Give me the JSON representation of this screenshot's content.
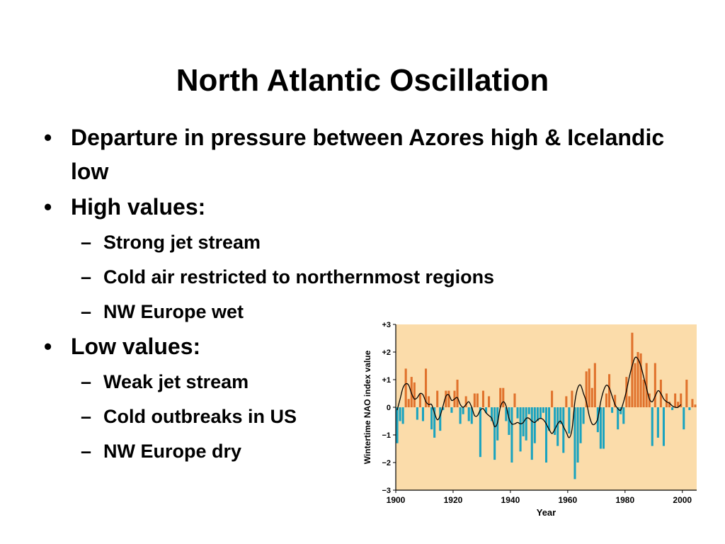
{
  "slide": {
    "title": "North Atlantic Oscillation",
    "bullets": [
      {
        "text": "Departure in pressure between Azores high & Icelandic low",
        "sub": []
      },
      {
        "text": "High values:",
        "sub": [
          "Strong jet stream",
          "Cold air restricted to northernmost regions",
          "NW Europe wet"
        ]
      },
      {
        "text": "Low values:",
        "sub": [
          "Weak jet stream",
          "Cold outbreaks in US",
          "NW Europe dry"
        ]
      }
    ]
  },
  "chart_data": {
    "type": "bar",
    "xlabel": "Year",
    "ylabel": "Wintertime NAO index value",
    "xlim": [
      1900,
      2005
    ],
    "ylim": [
      -3,
      3
    ],
    "x_ticks": [
      1900,
      1920,
      1940,
      1960,
      1980,
      2000
    ],
    "x_tick_labels": [
      "1900",
      "1920",
      "1940",
      "1960",
      "1980",
      "2000"
    ],
    "y_ticks": [
      3,
      2,
      1,
      0,
      -1,
      -2,
      -3
    ],
    "y_tick_labels": [
      "+3",
      "+2",
      "+1",
      "0",
      "−1",
      "−2",
      "−3"
    ],
    "grid": false,
    "colors": {
      "background": "#fbdcaa",
      "positive": "#e0722c",
      "negative": "#1aa3bf",
      "smooth_line": "#000000"
    },
    "years": [
      1900,
      1901,
      1902,
      1903,
      1904,
      1905,
      1906,
      1907,
      1908,
      1909,
      1910,
      1911,
      1912,
      1913,
      1914,
      1915,
      1916,
      1917,
      1918,
      1919,
      1920,
      1921,
      1922,
      1923,
      1924,
      1925,
      1926,
      1927,
      1928,
      1929,
      1930,
      1931,
      1932,
      1933,
      1934,
      1935,
      1936,
      1937,
      1938,
      1939,
      1940,
      1941,
      1942,
      1943,
      1944,
      1945,
      1946,
      1947,
      1948,
      1949,
      1950,
      1951,
      1952,
      1953,
      1954,
      1955,
      1956,
      1957,
      1958,
      1959,
      1960,
      1961,
      1962,
      1963,
      1964,
      1965,
      1966,
      1967,
      1968,
      1969,
      1970,
      1971,
      1972,
      1973,
      1974,
      1975,
      1976,
      1977,
      1978,
      1979,
      1980,
      1981,
      1982,
      1983,
      1984,
      1985,
      1986,
      1987,
      1988,
      1989,
      1990,
      1991,
      1992,
      1993,
      1994,
      1995,
      1996,
      1997,
      1998,
      1999,
      2000,
      2001,
      2002,
      2003,
      2004
    ],
    "values": [
      -1.3,
      -0.5,
      -0.6,
      1.4,
      0.3,
      1.1,
      0.9,
      -0.45,
      0.5,
      -0.5,
      1.4,
      0.4,
      -0.8,
      -1.1,
      0.6,
      -0.85,
      -0.1,
      0.6,
      0.6,
      -0.2,
      0.6,
      1.0,
      -0.6,
      -0.25,
      0.4,
      -0.5,
      -0.6,
      0.5,
      0.5,
      -1.8,
      0.6,
      -0.2,
      0.4,
      -0.5,
      -1.9,
      -1.2,
      0.7,
      0.7,
      -0.5,
      -1.0,
      -2.0,
      0.5,
      -0.4,
      -1.6,
      -1.05,
      -1.2,
      -0.25,
      -1.9,
      -1.3,
      -0.5,
      -0.4,
      -0.2,
      -2.0,
      -0.85,
      0.6,
      -1.0,
      -1.4,
      -0.6,
      -1.65,
      0.4,
      -0.95,
      0.6,
      -2.6,
      -2.0,
      -1.3,
      -0.6,
      1.3,
      1.4,
      0.7,
      1.6,
      -0.9,
      -1.5,
      -1.5,
      0.5,
      1.2,
      -0.2,
      0.45,
      -0.8,
      -0.25,
      -0.6,
      1.1,
      0.4,
      2.7,
      1.6,
      2.0,
      1.95,
      1.0,
      1.6,
      0.5,
      -1.4,
      1.6,
      -1.1,
      1.0,
      -1.4,
      0.5,
      0.2,
      -0.1,
      0.5,
      0.2,
      0.5,
      -0.8,
      1.0,
      -0.1,
      0.3,
      0.1
    ],
    "smoothed": [
      -0.1,
      0.3,
      0.7,
      0.85,
      0.8,
      0.5,
      0.3,
      0.35,
      0.5,
      0.45,
      0.2,
      0.1,
      0.1,
      -0.2,
      -0.45,
      -0.3,
      0.05,
      0.4,
      0.45,
      0.25,
      0.3,
      0.35,
      0.1,
      0.0,
      0.1,
      0.2,
      0.0,
      -0.3,
      -0.3,
      -0.1,
      -0.05,
      -0.2,
      -0.3,
      -0.4,
      -0.7,
      -0.55,
      0.0,
      0.2,
      0.05,
      -0.4,
      -0.6,
      -0.6,
      -0.55,
      -0.6,
      -0.55,
      -0.4,
      -0.4,
      -0.5,
      -0.55,
      -0.45,
      -0.4,
      -0.45,
      -0.6,
      -0.8,
      -0.95,
      -0.8,
      -0.6,
      -0.5,
      -0.7,
      -0.9,
      -1.1,
      -0.8,
      0.2,
      0.7,
      0.8,
      0.5,
      0.2,
      -0.3,
      -0.6,
      -0.6,
      -0.4,
      0.2,
      0.6,
      0.8,
      0.7,
      0.4,
      0.1,
      -0.05,
      -0.1,
      0.2,
      0.6,
      1.1,
      1.5,
      1.8,
      1.75,
      1.5,
      1.1,
      0.7,
      0.3,
      0.2,
      0.4,
      0.6,
      0.5,
      0.3,
      0.2,
      0.15,
      0.05,
      0.0,
      0.0,
      0.1
    ]
  }
}
